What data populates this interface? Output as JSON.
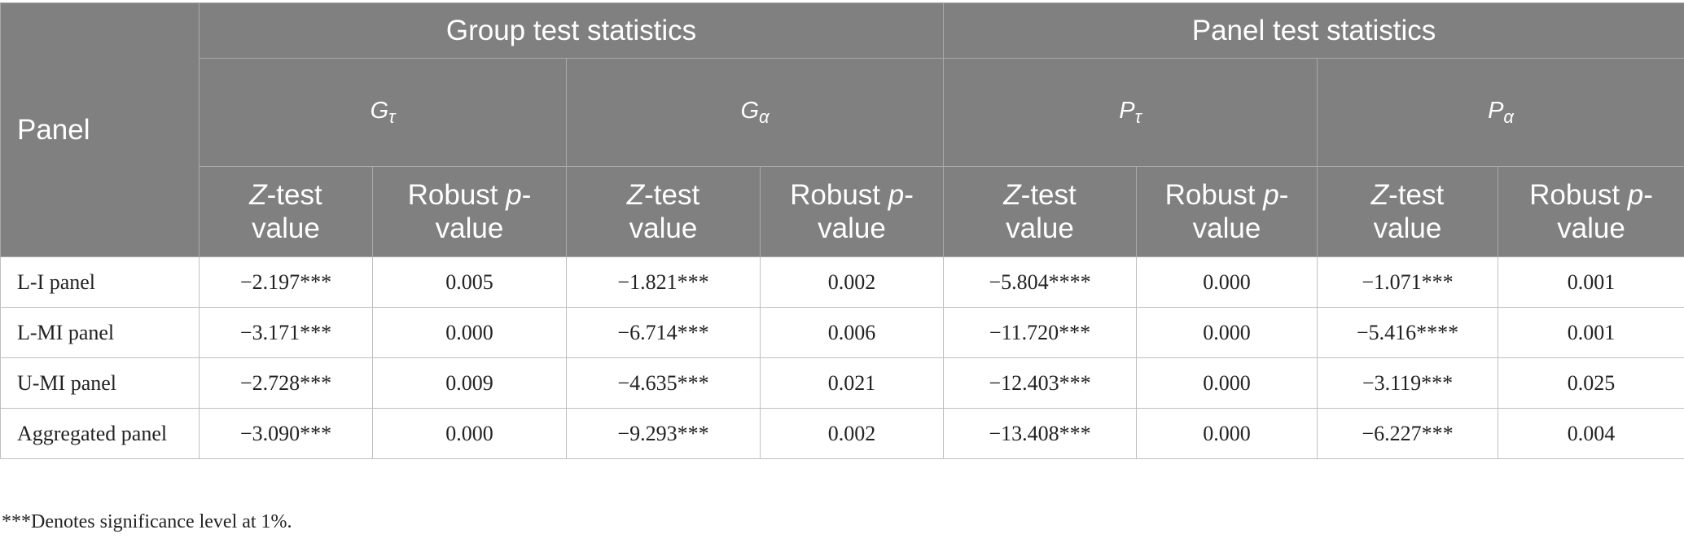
{
  "header": {
    "panel_label": "Panel",
    "group_label": "Group test statistics",
    "panel_stats_label": "Panel test statistics",
    "symbols": [
      {
        "base": "G",
        "sub": "τ"
      },
      {
        "base": "G",
        "sub": "α"
      },
      {
        "base": "P",
        "sub": "τ"
      },
      {
        "base": "P",
        "sub": "α"
      }
    ],
    "col_z_prefix": "Z",
    "col_z_suffix": "-test",
    "col_z_line2": "value",
    "col_p_prefix": "Robust ",
    "col_p_italic": "p",
    "col_p_suffix": "-",
    "col_p_line2": "value"
  },
  "rows": [
    {
      "label": "L-I panel",
      "values": [
        "−2.197***",
        "0.005",
        "−1.821***",
        "0.002",
        "−5.804****",
        "0.000",
        "−1.071***",
        "0.001"
      ]
    },
    {
      "label": "L-MI panel",
      "values": [
        "−3.171***",
        "0.000",
        "−6.714***",
        "0.006",
        "−11.720***",
        "0.000",
        "−5.416****",
        "0.001"
      ]
    },
    {
      "label": "U-MI panel",
      "values": [
        "−2.728***",
        "0.009",
        "−4.635***",
        "0.021",
        "−12.403***",
        "0.000",
        "−3.119***",
        "0.025"
      ]
    },
    {
      "label": "Aggregated panel",
      "values": [
        "−3.090***",
        "0.000",
        "−9.293***",
        "0.002",
        "−13.408***",
        "0.000",
        "−6.227***",
        "0.004"
      ]
    }
  ],
  "footnote": "***Denotes significance level at 1%."
}
